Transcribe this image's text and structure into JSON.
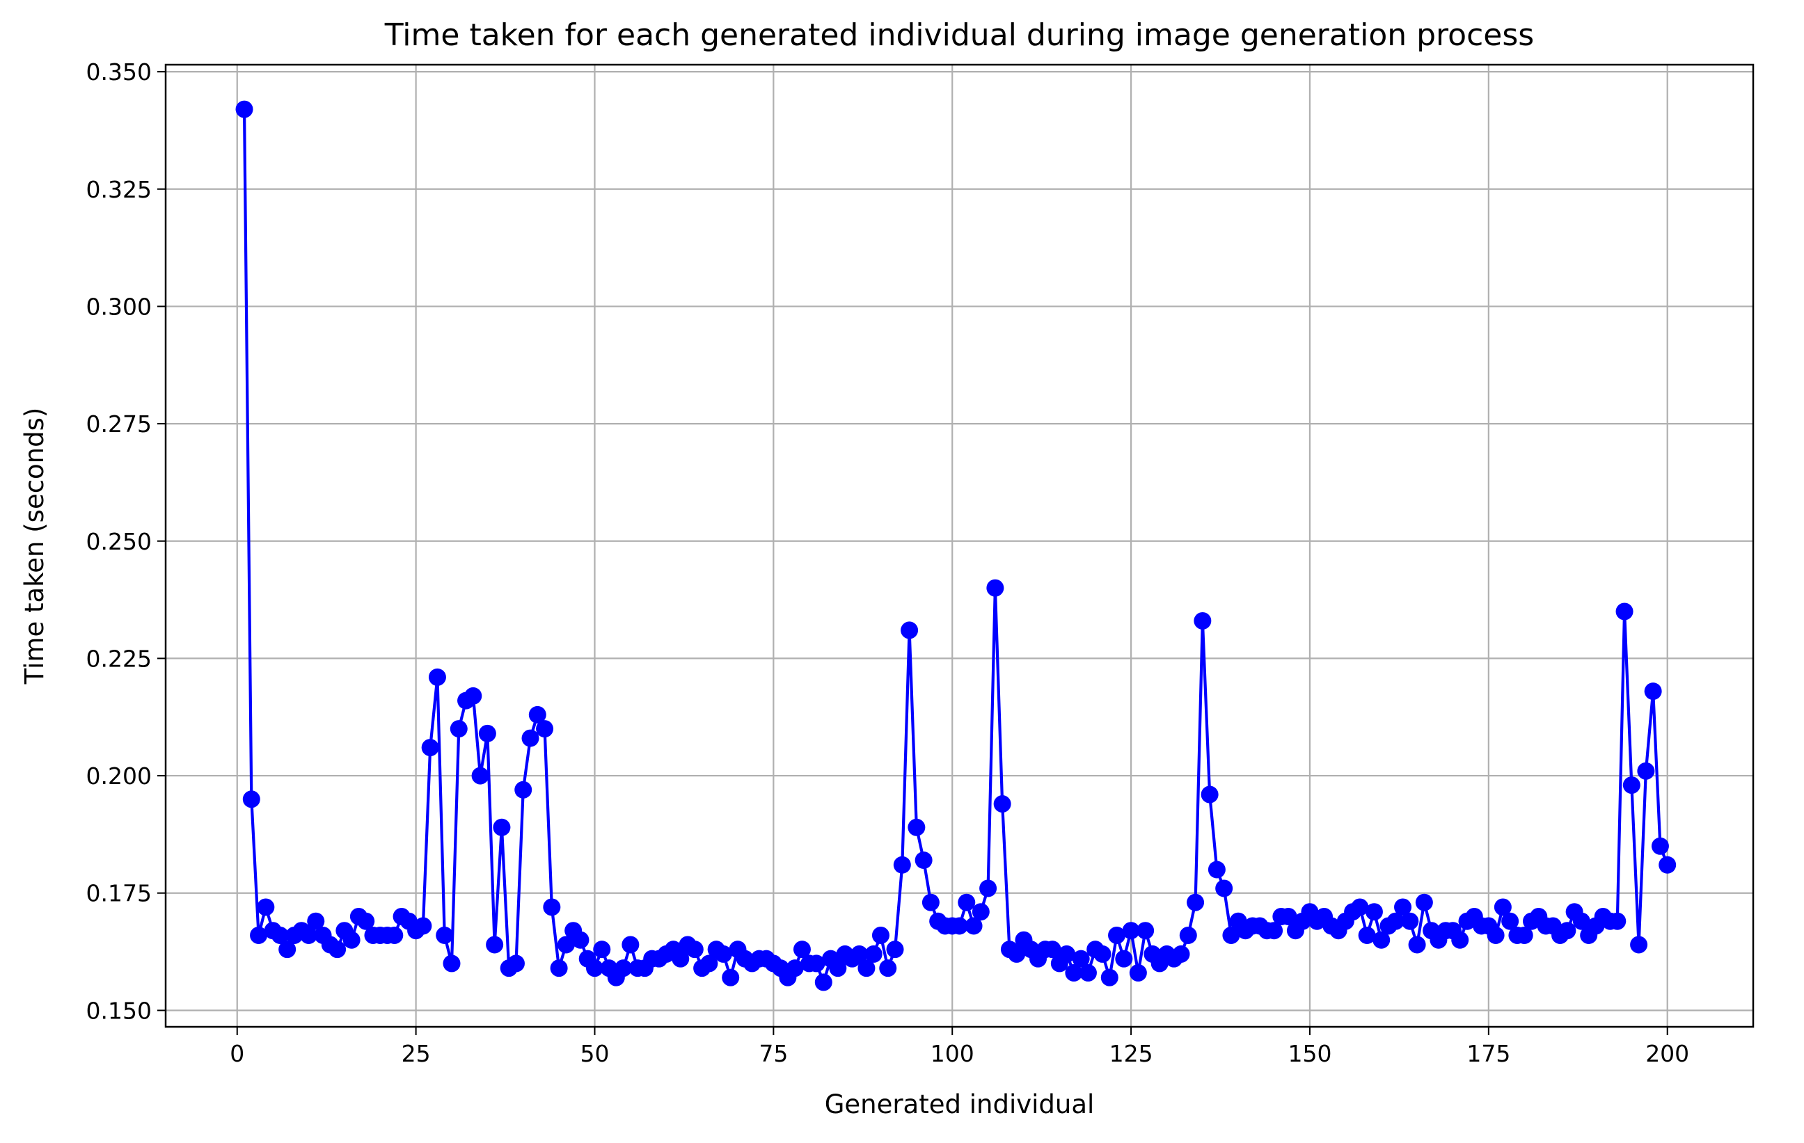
{
  "chart_data": {
    "type": "line",
    "title": "Time taken for each generated individual during image generation process",
    "xlabel": "Generated individual",
    "ylabel": "Time taken (seconds)",
    "xlim": [
      -10,
      212
    ],
    "ylim": [
      0.1465,
      0.3515
    ],
    "x_ticks": [
      0,
      25,
      50,
      75,
      100,
      125,
      150,
      175,
      200
    ],
    "y_ticks": [
      0.15,
      0.175,
      0.2,
      0.225,
      0.25,
      0.275,
      0.3,
      0.325,
      0.35
    ],
    "x_tick_labels": [
      "0",
      "25",
      "50",
      "75",
      "100",
      "125",
      "150",
      "175",
      "200"
    ],
    "y_tick_labels": [
      "0.150",
      "0.175",
      "0.200",
      "0.225",
      "0.250",
      "0.275",
      "0.300",
      "0.325",
      "0.350"
    ],
    "grid": true,
    "marker": "circle",
    "line_color": "#0000ff",
    "x": [
      1,
      2,
      3,
      4,
      5,
      6,
      7,
      8,
      9,
      10,
      11,
      12,
      13,
      14,
      15,
      16,
      17,
      18,
      19,
      20,
      21,
      22,
      23,
      24,
      25,
      26,
      27,
      28,
      29,
      30,
      31,
      32,
      33,
      34,
      35,
      36,
      37,
      38,
      39,
      40,
      41,
      42,
      43,
      44,
      45,
      46,
      47,
      48,
      49,
      50,
      51,
      52,
      53,
      54,
      55,
      56,
      57,
      58,
      59,
      60,
      61,
      62,
      63,
      64,
      65,
      66,
      67,
      68,
      69,
      70,
      71,
      72,
      73,
      74,
      75,
      76,
      77,
      78,
      79,
      80,
      81,
      82,
      83,
      84,
      85,
      86,
      87,
      88,
      89,
      90,
      91,
      92,
      93,
      94,
      95,
      96,
      97,
      98,
      99,
      100,
      101,
      102,
      103,
      104,
      105,
      106,
      107,
      108,
      109,
      110,
      111,
      112,
      113,
      114,
      115,
      116,
      117,
      118,
      119,
      120,
      121,
      122,
      123,
      124,
      125,
      126,
      127,
      128,
      129,
      130,
      131,
      132,
      133,
      134,
      135,
      136,
      137,
      138,
      139,
      140,
      141,
      142,
      143,
      144,
      145,
      146,
      147,
      148,
      149,
      150,
      151,
      152,
      153,
      154,
      155,
      156,
      157,
      158,
      159,
      160,
      161,
      162,
      163,
      164,
      165,
      166,
      167,
      168,
      169,
      170,
      171,
      172,
      173,
      174,
      175,
      176,
      177,
      178,
      179,
      180,
      181,
      182,
      183,
      184,
      185,
      186,
      187,
      188,
      189,
      190,
      191,
      192,
      193,
      194,
      195,
      196,
      197,
      198,
      199,
      200
    ],
    "y": [
      0.342,
      0.195,
      0.166,
      0.172,
      0.167,
      0.166,
      0.163,
      0.166,
      0.167,
      0.166,
      0.169,
      0.166,
      0.164,
      0.163,
      0.167,
      0.165,
      0.17,
      0.169,
      0.166,
      0.166,
      0.166,
      0.166,
      0.17,
      0.169,
      0.167,
      0.168,
      0.206,
      0.221,
      0.166,
      0.16,
      0.21,
      0.216,
      0.217,
      0.2,
      0.209,
      0.164,
      0.189,
      0.159,
      0.16,
      0.197,
      0.208,
      0.213,
      0.21,
      0.172,
      0.159,
      0.164,
      0.167,
      0.165,
      0.161,
      0.159,
      0.163,
      0.159,
      0.157,
      0.159,
      0.164,
      0.159,
      0.159,
      0.161,
      0.161,
      0.162,
      0.163,
      0.161,
      0.164,
      0.163,
      0.159,
      0.16,
      0.163,
      0.162,
      0.157,
      0.163,
      0.161,
      0.16,
      0.161,
      0.161,
      0.16,
      0.159,
      0.157,
      0.159,
      0.163,
      0.16,
      0.16,
      0.156,
      0.161,
      0.159,
      0.162,
      0.161,
      0.162,
      0.159,
      0.162,
      0.166,
      0.159,
      0.163,
      0.181,
      0.231,
      0.189,
      0.182,
      0.173,
      0.169,
      0.168,
      0.168,
      0.168,
      0.173,
      0.168,
      0.171,
      0.176,
      0.24,
      0.194,
      0.163,
      0.162,
      0.165,
      0.163,
      0.161,
      0.163,
      0.163,
      0.16,
      0.162,
      0.158,
      0.161,
      0.158,
      0.163,
      0.162,
      0.157,
      0.166,
      0.161,
      0.167,
      0.158,
      0.167,
      0.162,
      0.16,
      0.162,
      0.161,
      0.162,
      0.166,
      0.173,
      0.233,
      0.196,
      0.18,
      0.176,
      0.166,
      0.169,
      0.167,
      0.168,
      0.168,
      0.167,
      0.167,
      0.17,
      0.17,
      0.167,
      0.169,
      0.171,
      0.169,
      0.17,
      0.168,
      0.167,
      0.169,
      0.171,
      0.172,
      0.166,
      0.171,
      0.165,
      0.168,
      0.169,
      0.172,
      0.169,
      0.164,
      0.173,
      0.167,
      0.165,
      0.167,
      0.167,
      0.165,
      0.169,
      0.17,
      0.168,
      0.168,
      0.166,
      0.172,
      0.169,
      0.166,
      0.166,
      0.169,
      0.17,
      0.168,
      0.168,
      0.166,
      0.167,
      0.171,
      0.169,
      0.166,
      0.168,
      0.17,
      0.169,
      0.169,
      0.235,
      0.198,
      0.164,
      0.201,
      0.218,
      0.185,
      0.181
    ]
  }
}
